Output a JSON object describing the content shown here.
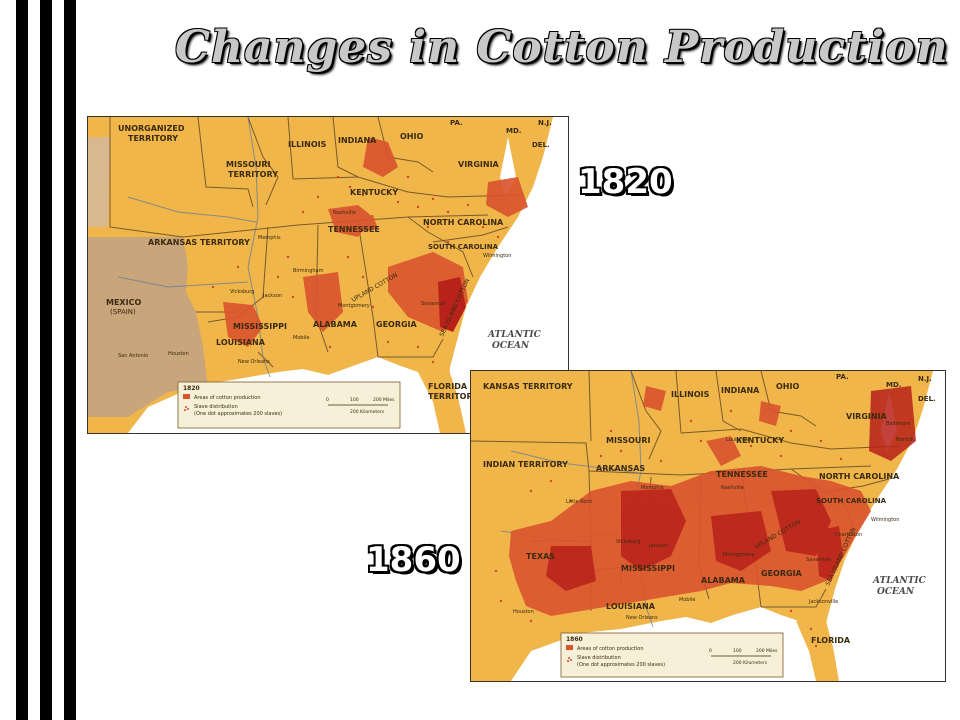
{
  "title": "Changes in Cotton Production",
  "year_1820": "1820",
  "year_1860": "1860",
  "map1820": {
    "labels": {
      "unorganized": "UNORGANIZED",
      "territory": "TERRITORY",
      "missouri": "MISSOURI",
      "missouri_territory": "TERRITORY",
      "illinois": "ILLINOIS",
      "indiana": "INDIANA",
      "ohio": "OHIO",
      "pa": "PA.",
      "md": "MD.",
      "nj": "N.J.",
      "del": "DEL.",
      "virginia": "VIRGINIA",
      "kentucky": "KENTUCKY",
      "tennessee": "TENNESSEE",
      "north_carolina": "NORTH CAROLINA",
      "south_carolina": "SOUTH CAROLINA",
      "arkansas_territory": "ARKANSAS TERRITORY",
      "mexico": "MEXICO",
      "spain": "(SPAIN)",
      "mississippi": "MISSISSIPPI",
      "alabama": "ALABAMA",
      "georgia": "GEORGIA",
      "louisiana": "LOUISIANA",
      "florida": "FLORIDA",
      "florida_territory": "TERRITORY",
      "atlantic": "ATLANTIC",
      "ocean": "OCEAN",
      "upland_cotton": "UPLAND COTTON",
      "sea_island_cotton": "SEA ISLAND COTTON",
      "memphis": "Memphis",
      "nashville": "Nashville",
      "vicksburg": "Vicksburg",
      "jackson": "Jackson",
      "birmingham": "Birmingham",
      "montgomery": "Montgomery",
      "wilmington": "Wilmington",
      "savannah": "Savannah",
      "san_antonio": "San Antonio",
      "houston": "Houston",
      "new_orleans": "New Orleans",
      "mobile": "Mobile"
    },
    "legend": {
      "year": "1820",
      "areas": "Areas of cotton production",
      "slave": "Slave distribution",
      "slave_note": "(One dot approximates 200 slaves)",
      "miles": "200 Miles",
      "km": "200 Kilometers",
      "zero": "0",
      "hundred": "100"
    }
  },
  "map1860": {
    "labels": {
      "kansas_territory": "KANSAS TERRITORY",
      "illinois": "ILLINOIS",
      "indiana": "INDIANA",
      "ohio": "OHIO",
      "pa": "PA.",
      "nj": "N.J.",
      "md": "MD.",
      "del": "DEL.",
      "missouri": "MISSOURI",
      "kentucky": "KENTUCKY",
      "virginia": "VIRGINIA",
      "indian_territory": "INDIAN TERRITORY",
      "arkansas": "ARKANSAS",
      "tennessee": "TENNESSEE",
      "north_carolina": "NORTH CAROLINA",
      "south_carolina": "SOUTH CAROLINA",
      "texas": "TEXAS",
      "mississippi": "MISSISSIPPI",
      "alabama": "ALABAMA",
      "georgia": "GEORGIA",
      "louisiana": "LOUISIANA",
      "florida": "FLORIDA",
      "atlantic": "ATLANTIC",
      "ocean": "OCEAN",
      "upland_cotton": "UPLAND COTTON",
      "sea_island_cotton": "SEA ISLAND COTTON",
      "little_rock": "Little Rock",
      "memphis": "Memphis",
      "nashville": "Nashville",
      "louisville": "Louisville",
      "wilmington": "Wilmington",
      "charleston": "Charleston",
      "savannah": "Savannah",
      "vicksburg": "Vicksburg",
      "jackson": "Jackson",
      "montgomery": "Montgomery",
      "jacksonville": "Jacksonville",
      "houston": "Houston",
      "new_orleans": "New Orleans",
      "mobile": "Mobile",
      "baltimore": "Baltimore",
      "norfolk": "Norfolk"
    },
    "legend": {
      "year": "1860",
      "areas": "Areas of cotton production",
      "slave": "Slave distribution",
      "slave_note": "(One dot approximates 200 slaves)",
      "miles": "200 Miles",
      "km": "200 Kilometers",
      "zero": "0",
      "hundred": "100"
    }
  },
  "colors": {
    "land": "#f0b64a",
    "land_light": "#f5c866",
    "mexico": "#c9a57c",
    "water": "#ffffff",
    "cotton": "#d9532e",
    "cotton_dark": "#b8221a",
    "border": "#7a5a2a",
    "dot": "#d8452a"
  }
}
